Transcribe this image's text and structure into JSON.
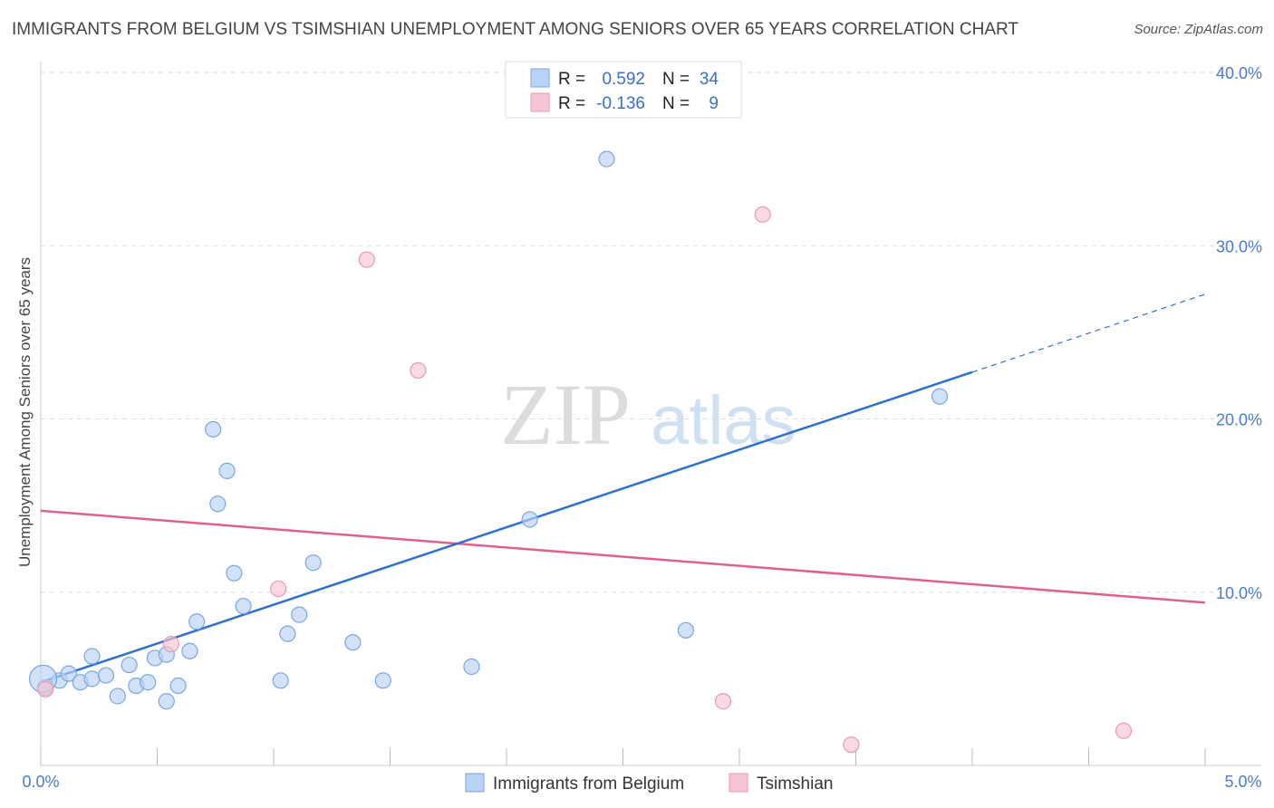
{
  "header": {
    "title": "IMMIGRANTS FROM BELGIUM VS TSIMSHIAN UNEMPLOYMENT AMONG SENIORS OVER 65 YEARS CORRELATION CHART",
    "source": "Source: ZipAtlas.com"
  },
  "watermark": {
    "zip": "ZIP",
    "atlas": "atlas"
  },
  "colors": {
    "blue_fill": "#b8d3f5",
    "blue_stroke": "#7aa6e0",
    "blue_line": "#2f6fd1",
    "pink_fill": "#f7c4d3",
    "pink_stroke": "#e99ab2",
    "pink_line": "#e0608c",
    "grid": "#dddddd",
    "tick_text": "#4a7cc9"
  },
  "chart_data": {
    "type": "scatter",
    "title": "IMMIGRANTS FROM BELGIUM VS TSIMSHIAN UNEMPLOYMENT AMONG SENIORS OVER 65 YEARS CORRELATION CHART",
    "xlabel": "",
    "ylabel": "Unemployment Among Seniors over 65 years",
    "xlim": [
      0,
      5
    ],
    "ylim": [
      0,
      40
    ],
    "x_tick_labels": [
      "0.0%",
      "5.0%"
    ],
    "y_ticks": [
      10,
      20,
      30,
      40
    ],
    "y_tick_labels": [
      "10.0%",
      "20.0%",
      "30.0%",
      "40.0%"
    ],
    "grid": true,
    "legend": {
      "position": "top-center",
      "entries": [
        {
          "r_label": "R =",
          "r_value": "0.592",
          "n_label": "N =",
          "n_value": "34"
        },
        {
          "r_label": "R =",
          "r_value": "-0.136",
          "n_label": "N =",
          "n_value": "9"
        }
      ]
    },
    "bottom_legend": [
      "Immigrants from Belgium",
      "Tsimshian"
    ],
    "series": [
      {
        "name": "Immigrants from Belgium",
        "color": "blue",
        "points": [
          [
            0.02,
            4.5
          ],
          [
            0.08,
            4.9
          ],
          [
            0.12,
            5.3
          ],
          [
            0.17,
            4.8
          ],
          [
            0.22,
            5.0
          ],
          [
            0.22,
            6.3
          ],
          [
            0.28,
            5.2
          ],
          [
            0.33,
            4.0
          ],
          [
            0.38,
            5.8
          ],
          [
            0.41,
            4.6
          ],
          [
            0.46,
            4.8
          ],
          [
            0.49,
            6.2
          ],
          [
            0.54,
            3.7
          ],
          [
            0.54,
            6.4
          ],
          [
            0.59,
            4.6
          ],
          [
            0.64,
            6.6
          ],
          [
            0.67,
            8.3
          ],
          [
            0.74,
            19.4
          ],
          [
            0.76,
            15.1
          ],
          [
            0.8,
            17.0
          ],
          [
            0.83,
            11.1
          ],
          [
            0.87,
            9.2
          ],
          [
            1.03,
            4.9
          ],
          [
            1.06,
            7.6
          ],
          [
            1.11,
            8.7
          ],
          [
            1.17,
            11.7
          ],
          [
            1.34,
            7.1
          ],
          [
            1.47,
            4.9
          ],
          [
            1.85,
            5.7
          ],
          [
            2.1,
            14.2
          ],
          [
            2.43,
            35.0
          ],
          [
            2.77,
            7.8
          ],
          [
            3.86,
            21.3
          ],
          [
            0.01,
            5.0
          ]
        ],
        "regression": {
          "x0": 0.0,
          "y0": 4.8,
          "x1": 4.0,
          "y1": 22.7,
          "dashed_to_x": 5.0,
          "dashed_to_y": 27.2
        }
      },
      {
        "name": "Tsimshian",
        "color": "pink",
        "points": [
          [
            0.02,
            4.4
          ],
          [
            0.56,
            7.0
          ],
          [
            1.02,
            10.2
          ],
          [
            1.4,
            29.2
          ],
          [
            1.62,
            22.8
          ],
          [
            2.93,
            3.7
          ],
          [
            3.1,
            31.8
          ],
          [
            3.48,
            1.2
          ],
          [
            4.65,
            2.0
          ]
        ],
        "regression": {
          "x0": 0.0,
          "y0": 14.7,
          "x1": 5.0,
          "y1": 9.4
        }
      }
    ]
  }
}
